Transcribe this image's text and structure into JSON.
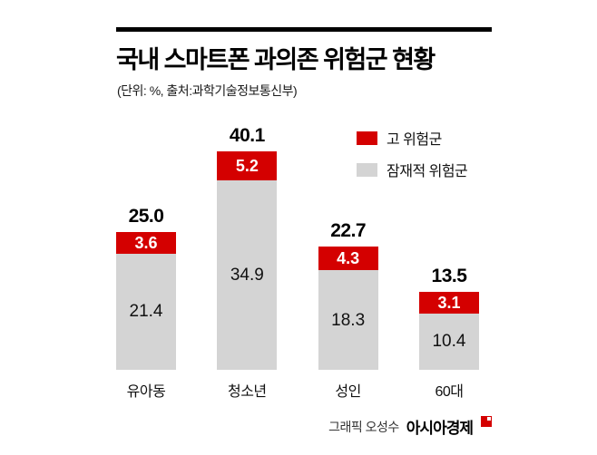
{
  "header": {
    "title": "국내 스마트폰 과의존 위험군 현황",
    "subtitle": "(단위: %, 출처:과학기술정보통신부)"
  },
  "legend": {
    "items": [
      {
        "label": "고 위험군",
        "color": "#d40000"
      },
      {
        "label": "잠재적 위험군",
        "color": "#d4d4d4"
      }
    ]
  },
  "footer": {
    "credit": "그래픽 오성수",
    "brand": "아시아경제"
  },
  "chart_data": {
    "type": "bar",
    "stacked": true,
    "title": "국내 스마트폰 과의존 위험군 현황",
    "unit": "%",
    "categories": [
      "유아동",
      "청소년",
      "성인",
      "60대"
    ],
    "series": [
      {
        "name": "고 위험군",
        "color": "#d40000",
        "values": [
          3.6,
          5.2,
          4.3,
          3.1
        ]
      },
      {
        "name": "잠재적 위험군",
        "color": "#d4d4d4",
        "values": [
          21.4,
          34.9,
          18.3,
          10.4
        ]
      }
    ],
    "totals": [
      25.0,
      40.1,
      22.7,
      13.5
    ],
    "ylim": [
      0,
      42
    ],
    "legend_position": "top-right",
    "grid": false
  }
}
